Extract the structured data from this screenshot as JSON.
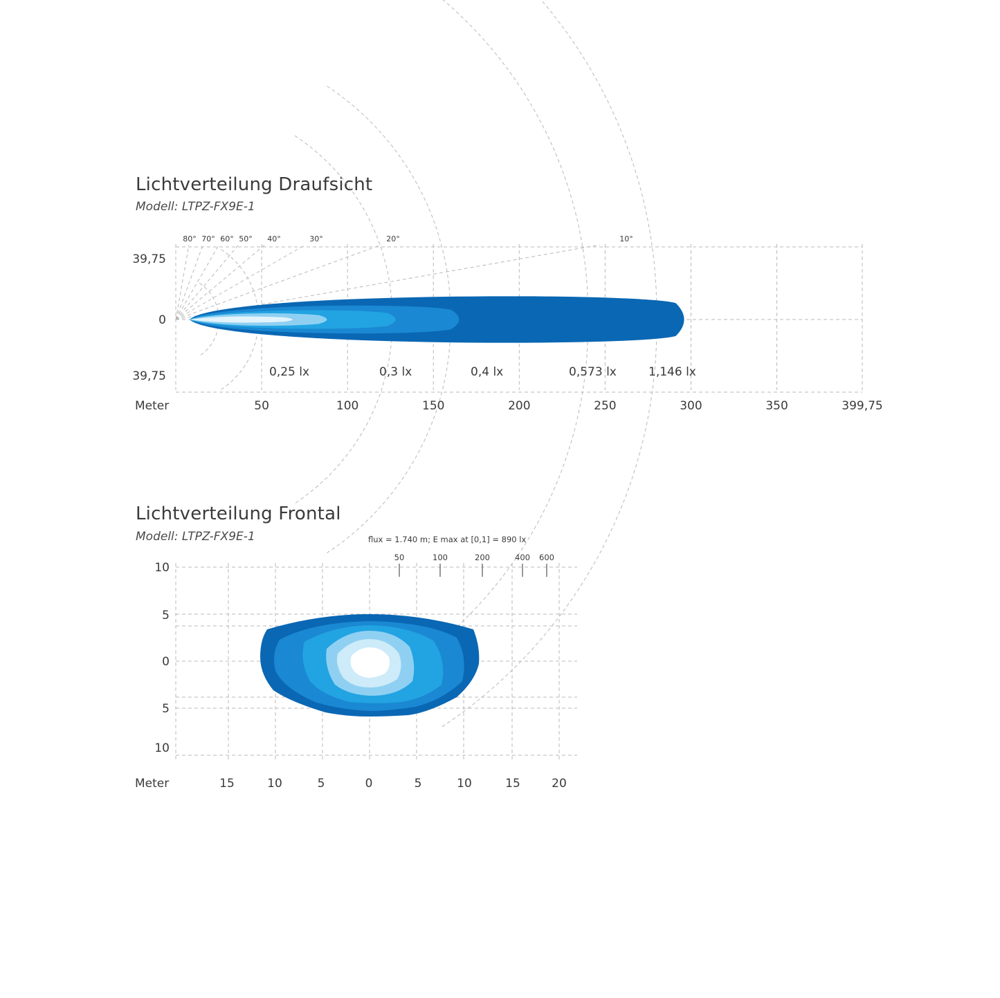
{
  "chart_data": [
    {
      "type": "area",
      "title": "Lichtverteilung Draufsicht",
      "subtitle": "Modell: LTPZ-FX9E-1",
      "xlabel": "Meter",
      "x_ticks": [
        "50",
        "100",
        "150",
        "200",
        "250",
        "300",
        "350",
        "399,75"
      ],
      "y_ticks": [
        "39,75",
        "0",
        "39,75"
      ],
      "xlim": [
        0,
        399.75
      ],
      "ylim": [
        -39.75,
        39.75
      ],
      "angle_labels": [
        "80°",
        "70°",
        "60°",
        "50°",
        "40°",
        "30°",
        "20°",
        "10°"
      ],
      "angle_values": [
        80,
        70,
        60,
        50,
        40,
        30,
        20,
        10
      ],
      "grid": true,
      "series": [
        {
          "name": "0,25 lx",
          "reach": 296,
          "half_width": 15
        },
        {
          "name": "0,3 lx",
          "reach": 165,
          "half_width": 9
        },
        {
          "name": "0,4 lx",
          "reach": 128,
          "half_width": 6
        },
        {
          "name": "0,573 lx",
          "reach": 88,
          "half_width": 4
        },
        {
          "name": "1,146 lx",
          "reach": 68,
          "half_width": 2
        }
      ],
      "colors": [
        "#0a67b4",
        "#1a88d2",
        "#22a3e2",
        "#8fd0f2",
        "#e2f3fc"
      ]
    },
    {
      "type": "heatmap",
      "title": "Lichtverteilung Frontal",
      "subtitle": "Modell: LTPZ-FX9E-1",
      "annotation": "flux = 1.740 m; E max at [0,1] = 890 lx",
      "xlabel": "Meter",
      "x_ticks": [
        "15",
        "10",
        "5",
        "0",
        "5",
        "10",
        "15",
        "20"
      ],
      "y_ticks": [
        "10",
        "5",
        "0",
        "5",
        "10"
      ],
      "xlim": [
        -20,
        20
      ],
      "ylim": [
        -10,
        10
      ],
      "scale_labels": [
        "50",
        "100",
        "200",
        "400",
        "600"
      ],
      "grid": true,
      "colors": [
        "#0a67b4",
        "#1a88d2",
        "#22a3e2",
        "#8fd0f2",
        "#cdebf9",
        "#ffffff"
      ]
    }
  ]
}
